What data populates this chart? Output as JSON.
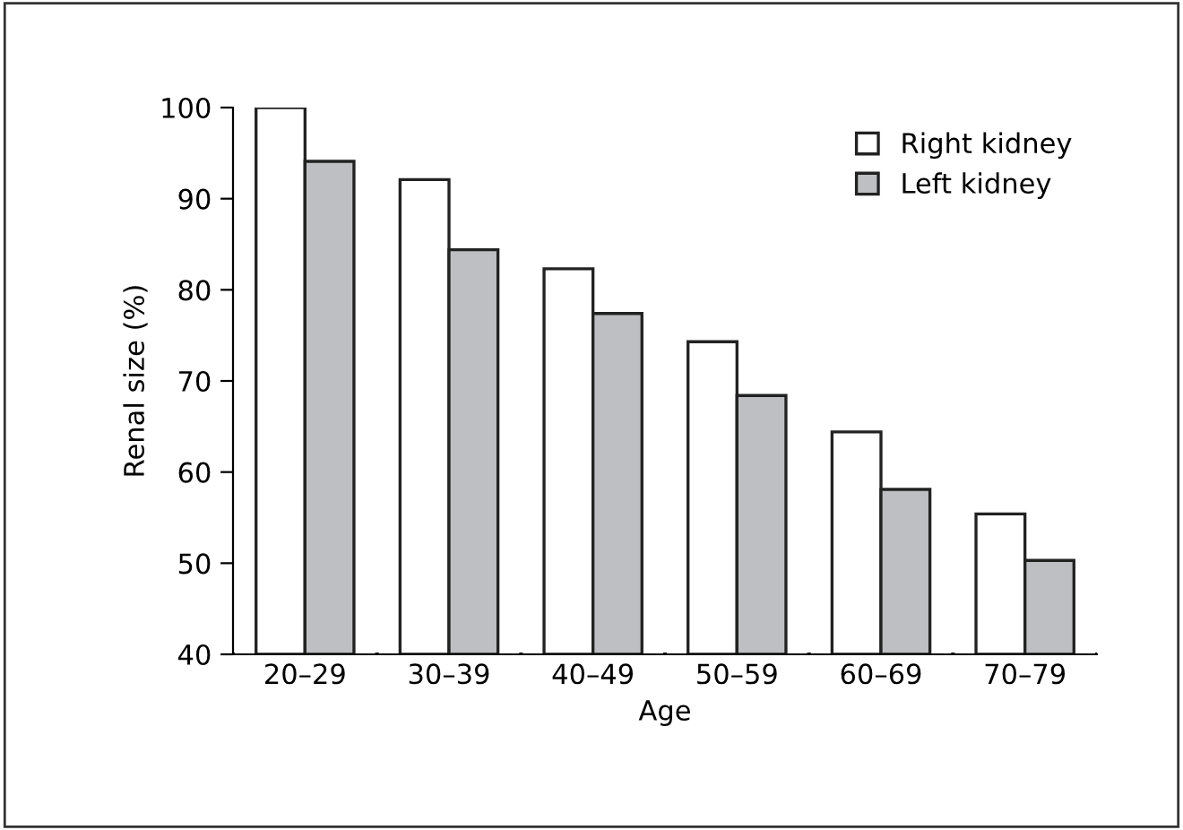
{
  "chart_data": {
    "type": "bar",
    "xlabel": "Age",
    "ylabel": "Renal size (%)",
    "categories": [
      "20–29",
      "30–39",
      "40–49",
      "50–59",
      "60–69",
      "70–79"
    ],
    "series": [
      {
        "name": "Right kidney",
        "color": "#ffffff",
        "values": [
          100,
          92.1,
          82.3,
          74.3,
          64.4,
          55.4
        ]
      },
      {
        "name": "Left kidney",
        "color": "#bebfc2",
        "values": [
          94.1,
          84.4,
          77.4,
          68.4,
          58.1,
          50.3
        ]
      }
    ],
    "ylim": [
      40,
      100
    ],
    "yticks": [
      40,
      50,
      60,
      70,
      80,
      90,
      100
    ],
    "grid": false,
    "legend": "top right"
  }
}
